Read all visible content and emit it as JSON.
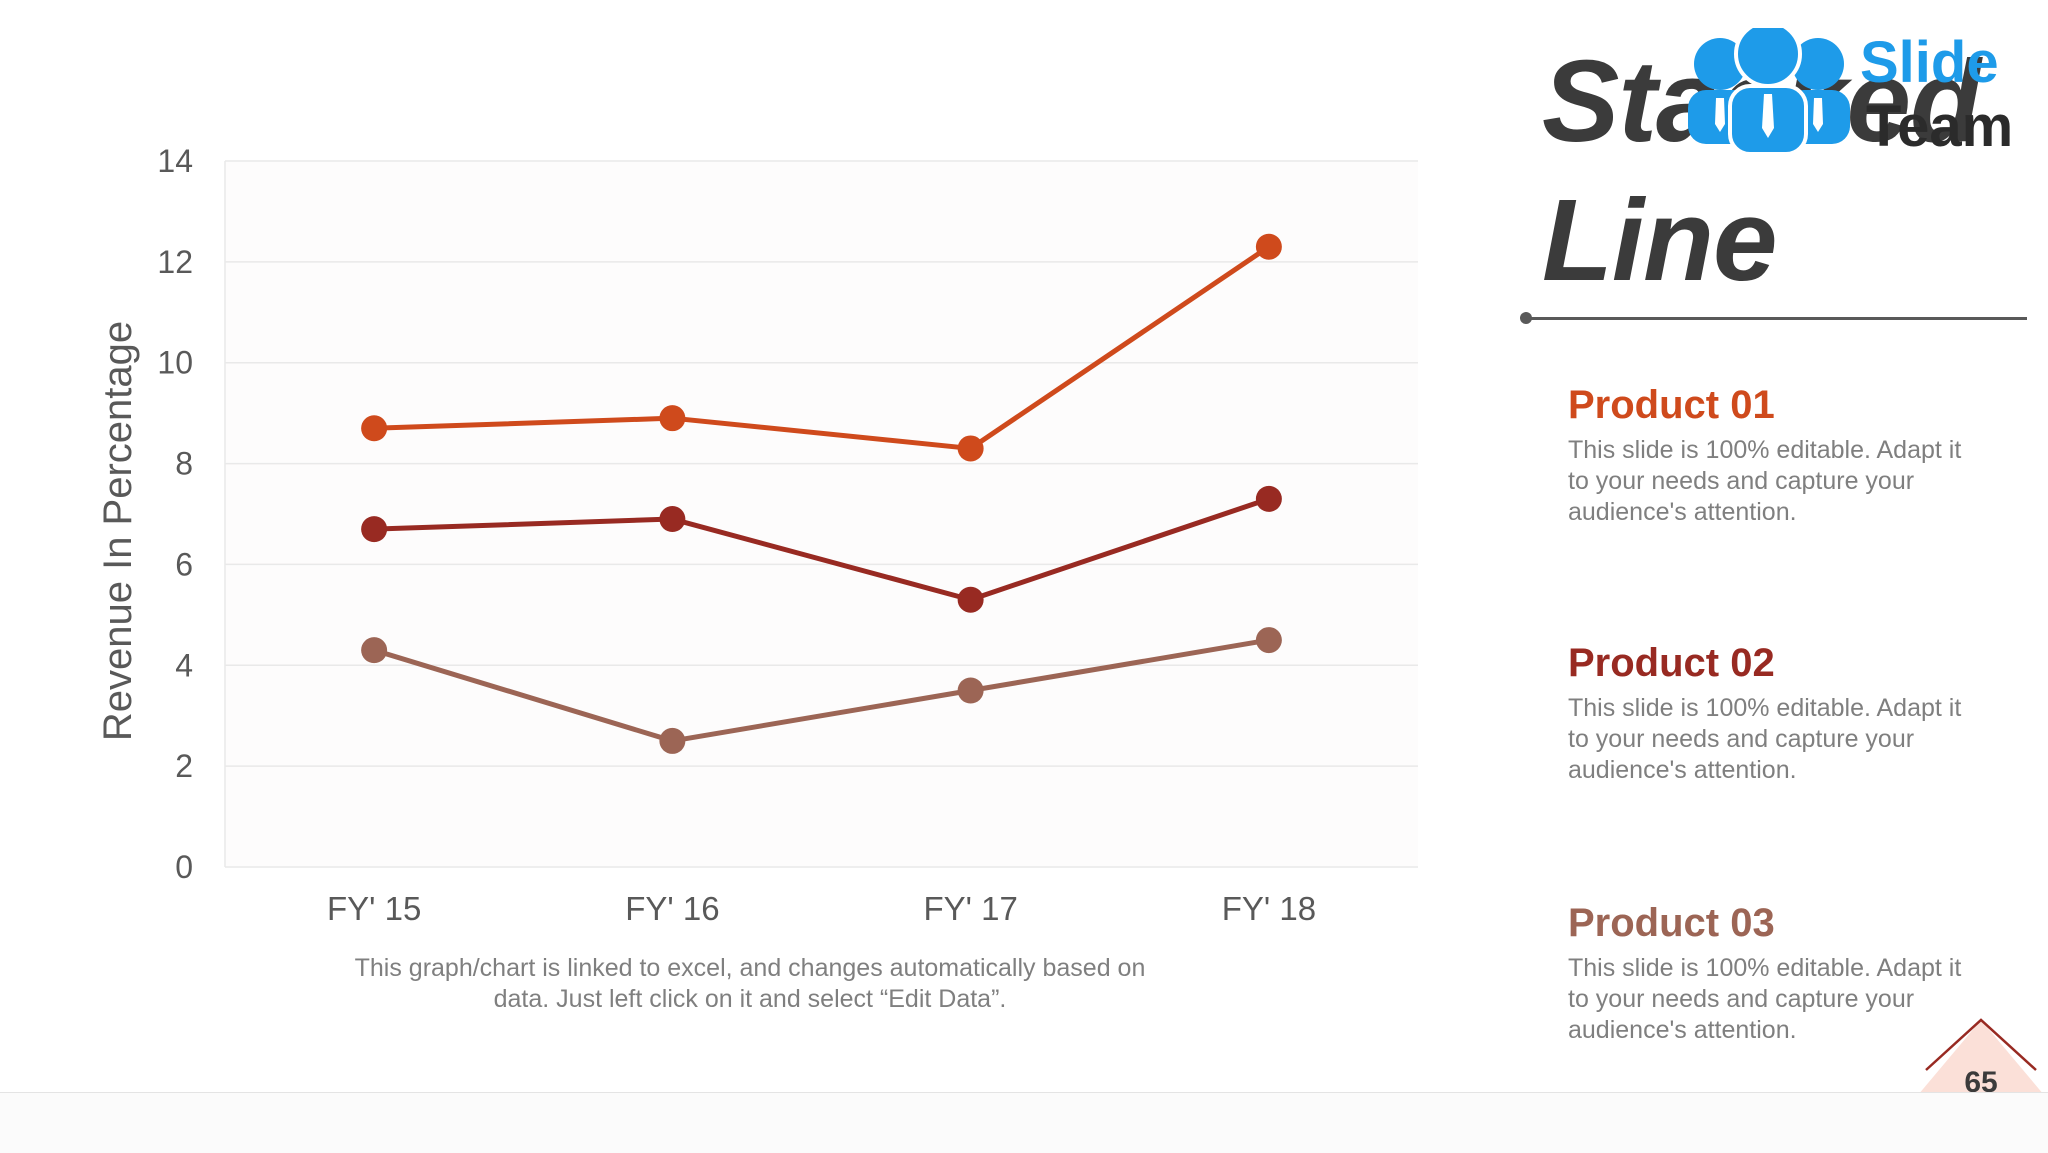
{
  "slide": {
    "title_line1": "Stacked",
    "title_line2": "Line",
    "note": "This graph/chart is linked to excel, and changes automatically based on data. Just left click on it and select “Edit Data”.",
    "page_number": "65"
  },
  "logo": {
    "word1": "Slide",
    "word2": "Team",
    "color_primary": "#1e9be9",
    "color_dark": "#2b2b2b"
  },
  "products": [
    {
      "title": "Product 01",
      "text": "This slide is 100% editable. Adapt it to your needs and capture your audience's attention.",
      "color": "#cf4a1c"
    },
    {
      "title": "Product 02",
      "text": "This slide is 100% editable. Adapt it to your needs and capture your audience's attention.",
      "color": "#982a22"
    },
    {
      "title": "Product 03",
      "text": "This slide is 100% editable. Adapt it to your needs and capture your audience's attention.",
      "color": "#9c6555"
    }
  ],
  "chart_data": {
    "type": "line",
    "title": "Stacked Line",
    "xlabel": "",
    "ylabel": "Revenue In Percentage",
    "categories": [
      "FY' 15",
      "FY' 16",
      "FY' 17",
      "FY' 18"
    ],
    "ylim": [
      0,
      14
    ],
    "yticks": [
      0,
      2,
      4,
      6,
      8,
      10,
      12,
      14
    ],
    "grid": true,
    "series": [
      {
        "name": "Product 01",
        "values": [
          8.7,
          8.9,
          8.3,
          12.3
        ],
        "color": "#cf4a1c"
      },
      {
        "name": "Product 02",
        "values": [
          6.7,
          6.9,
          5.3,
          7.3
        ],
        "color": "#982a22"
      },
      {
        "name": "Product 03",
        "values": [
          4.3,
          2.5,
          3.5,
          4.5
        ],
        "color": "#9c6555"
      }
    ]
  }
}
